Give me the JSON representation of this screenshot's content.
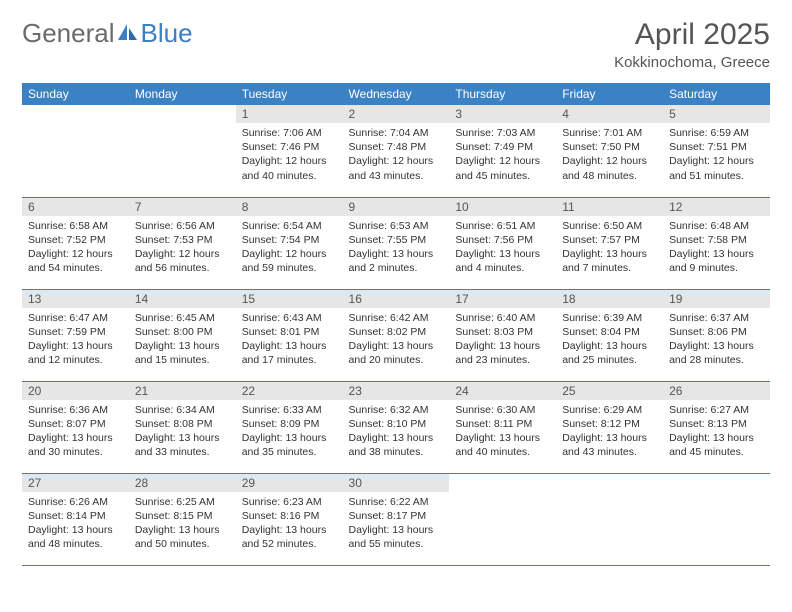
{
  "logo": {
    "text_general": "General",
    "text_blue": "Blue"
  },
  "title": {
    "month": "April 2025",
    "location": "Kokkinochoma, Greece"
  },
  "colors": {
    "header_bg": "#3b82c4",
    "daynum_bg": "#e6e6e6",
    "rule": "#3b82c4"
  },
  "day_headers": [
    "Sunday",
    "Monday",
    "Tuesday",
    "Wednesday",
    "Thursday",
    "Friday",
    "Saturday"
  ],
  "weeks": [
    [
      null,
      null,
      {
        "n": "1",
        "sr": "7:06 AM",
        "ss": "7:46 PM",
        "dl": "12 hours and 40 minutes."
      },
      {
        "n": "2",
        "sr": "7:04 AM",
        "ss": "7:48 PM",
        "dl": "12 hours and 43 minutes."
      },
      {
        "n": "3",
        "sr": "7:03 AM",
        "ss": "7:49 PM",
        "dl": "12 hours and 45 minutes."
      },
      {
        "n": "4",
        "sr": "7:01 AM",
        "ss": "7:50 PM",
        "dl": "12 hours and 48 minutes."
      },
      {
        "n": "5",
        "sr": "6:59 AM",
        "ss": "7:51 PM",
        "dl": "12 hours and 51 minutes."
      }
    ],
    [
      {
        "n": "6",
        "sr": "6:58 AM",
        "ss": "7:52 PM",
        "dl": "12 hours and 54 minutes."
      },
      {
        "n": "7",
        "sr": "6:56 AM",
        "ss": "7:53 PM",
        "dl": "12 hours and 56 minutes."
      },
      {
        "n": "8",
        "sr": "6:54 AM",
        "ss": "7:54 PM",
        "dl": "12 hours and 59 minutes."
      },
      {
        "n": "9",
        "sr": "6:53 AM",
        "ss": "7:55 PM",
        "dl": "13 hours and 2 minutes."
      },
      {
        "n": "10",
        "sr": "6:51 AM",
        "ss": "7:56 PM",
        "dl": "13 hours and 4 minutes."
      },
      {
        "n": "11",
        "sr": "6:50 AM",
        "ss": "7:57 PM",
        "dl": "13 hours and 7 minutes."
      },
      {
        "n": "12",
        "sr": "6:48 AM",
        "ss": "7:58 PM",
        "dl": "13 hours and 9 minutes."
      }
    ],
    [
      {
        "n": "13",
        "sr": "6:47 AM",
        "ss": "7:59 PM",
        "dl": "13 hours and 12 minutes."
      },
      {
        "n": "14",
        "sr": "6:45 AM",
        "ss": "8:00 PM",
        "dl": "13 hours and 15 minutes."
      },
      {
        "n": "15",
        "sr": "6:43 AM",
        "ss": "8:01 PM",
        "dl": "13 hours and 17 minutes."
      },
      {
        "n": "16",
        "sr": "6:42 AM",
        "ss": "8:02 PM",
        "dl": "13 hours and 20 minutes."
      },
      {
        "n": "17",
        "sr": "6:40 AM",
        "ss": "8:03 PM",
        "dl": "13 hours and 23 minutes."
      },
      {
        "n": "18",
        "sr": "6:39 AM",
        "ss": "8:04 PM",
        "dl": "13 hours and 25 minutes."
      },
      {
        "n": "19",
        "sr": "6:37 AM",
        "ss": "8:06 PM",
        "dl": "13 hours and 28 minutes."
      }
    ],
    [
      {
        "n": "20",
        "sr": "6:36 AM",
        "ss": "8:07 PM",
        "dl": "13 hours and 30 minutes."
      },
      {
        "n": "21",
        "sr": "6:34 AM",
        "ss": "8:08 PM",
        "dl": "13 hours and 33 minutes."
      },
      {
        "n": "22",
        "sr": "6:33 AM",
        "ss": "8:09 PM",
        "dl": "13 hours and 35 minutes."
      },
      {
        "n": "23",
        "sr": "6:32 AM",
        "ss": "8:10 PM",
        "dl": "13 hours and 38 minutes."
      },
      {
        "n": "24",
        "sr": "6:30 AM",
        "ss": "8:11 PM",
        "dl": "13 hours and 40 minutes."
      },
      {
        "n": "25",
        "sr": "6:29 AM",
        "ss": "8:12 PM",
        "dl": "13 hours and 43 minutes."
      },
      {
        "n": "26",
        "sr": "6:27 AM",
        "ss": "8:13 PM",
        "dl": "13 hours and 45 minutes."
      }
    ],
    [
      {
        "n": "27",
        "sr": "6:26 AM",
        "ss": "8:14 PM",
        "dl": "13 hours and 48 minutes."
      },
      {
        "n": "28",
        "sr": "6:25 AM",
        "ss": "8:15 PM",
        "dl": "13 hours and 50 minutes."
      },
      {
        "n": "29",
        "sr": "6:23 AM",
        "ss": "8:16 PM",
        "dl": "13 hours and 52 minutes."
      },
      {
        "n": "30",
        "sr": "6:22 AM",
        "ss": "8:17 PM",
        "dl": "13 hours and 55 minutes."
      },
      null,
      null,
      null
    ]
  ],
  "labels": {
    "sunrise": "Sunrise:",
    "sunset": "Sunset:",
    "daylight": "Daylight:"
  }
}
